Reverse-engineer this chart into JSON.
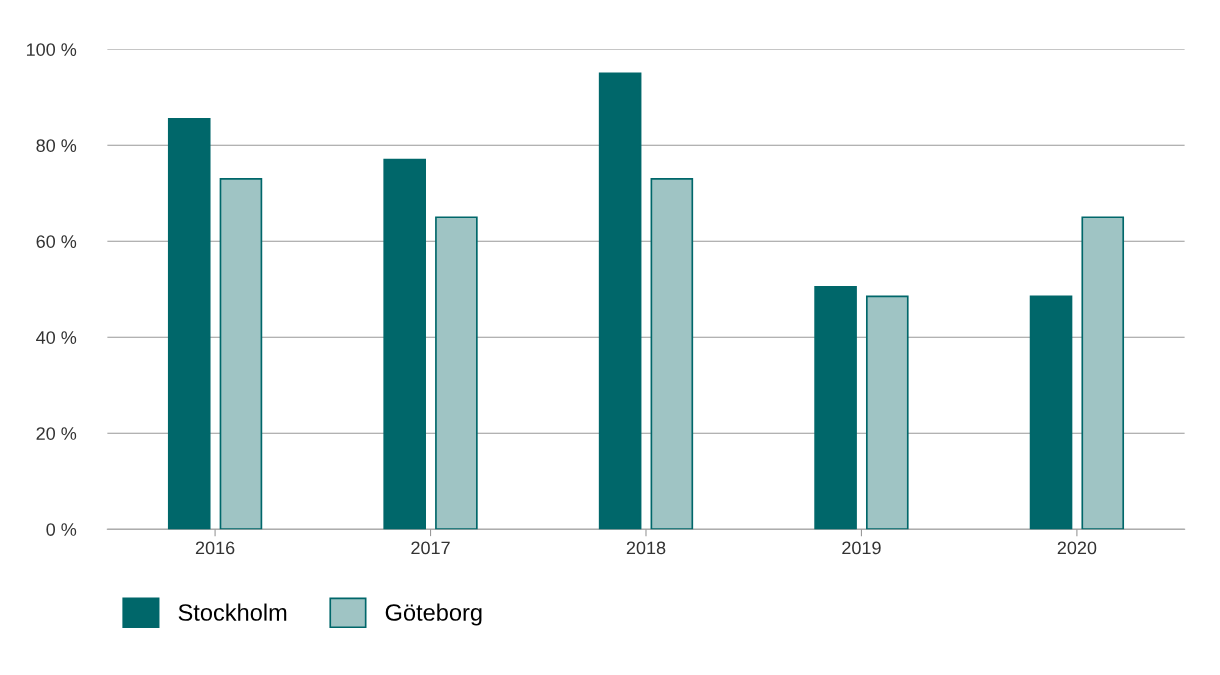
{
  "chart_data": {
    "type": "bar",
    "categories": [
      "2016",
      "2017",
      "2018",
      "2019",
      "2020"
    ],
    "series": [
      {
        "name": "Stockholm",
        "color": "#00676a",
        "values": [
          85.5,
          77,
          95,
          50.5,
          48.5
        ]
      },
      {
        "name": "Göteborg",
        "color": "#9fc4c4",
        "values": [
          73,
          65,
          73,
          48.5,
          65
        ]
      }
    ],
    "ylim": [
      0,
      100
    ],
    "yticks": [
      {
        "value": 0,
        "label": "0 %"
      },
      {
        "value": 20,
        "label": "20 %"
      },
      {
        "value": 40,
        "label": "40 %"
      },
      {
        "value": 60,
        "label": "60 %"
      },
      {
        "value": 80,
        "label": "80 %"
      },
      {
        "value": 100,
        "label": "100 %"
      }
    ],
    "grid": "y",
    "legend": "bottom left"
  }
}
